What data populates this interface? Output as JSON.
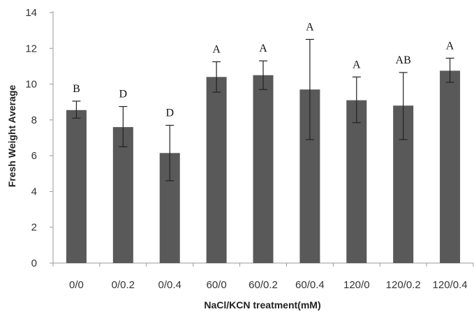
{
  "chart_data": {
    "type": "bar",
    "xlabel": "NaCl/KCN treatment(mM)",
    "ylabel": "Fresh Weight Average",
    "ylim": [
      0,
      14
    ],
    "yticks": [
      0,
      2,
      4,
      6,
      8,
      10,
      12,
      14
    ],
    "grid": false,
    "legend": "none",
    "categories": [
      "0/0",
      "0/0.2",
      "0/0.4",
      "60/0",
      "60/0.2",
      "60/0.4",
      "120/0",
      "120/0.2",
      "120/0.4"
    ],
    "values": [
      8.55,
      7.6,
      6.15,
      10.4,
      10.5,
      9.7,
      9.1,
      8.8,
      10.75
    ],
    "error_low": [
      8.1,
      6.5,
      4.6,
      9.55,
      9.7,
      6.9,
      7.85,
      6.9,
      10.1
    ],
    "error_high": [
      9.05,
      8.75,
      7.7,
      11.25,
      11.3,
      12.5,
      10.4,
      10.65,
      11.45
    ],
    "significance": [
      "B",
      "D",
      "D",
      "A",
      "A",
      "A",
      "A",
      "AB",
      "A"
    ],
    "bar_color": "#595959"
  }
}
